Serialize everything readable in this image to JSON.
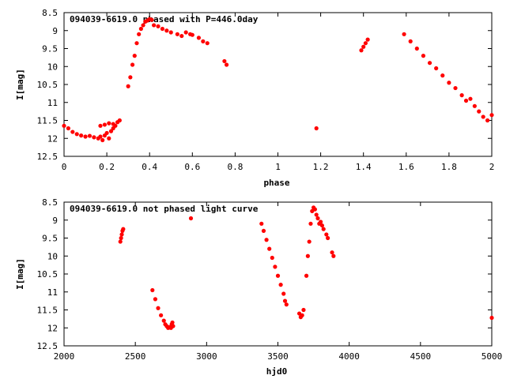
{
  "chart_data": [
    {
      "type": "scatter",
      "title": "094039-6619.0 phased with P=446.0day",
      "xlabel": "phase",
      "ylabel": "I[mag]",
      "xlim": [
        0,
        2
      ],
      "ylim": [
        8.5,
        12.5
      ],
      "y_inverted": true,
      "xticks": [
        "0",
        "0.2",
        "0.4",
        "0.6",
        "0.8",
        "1",
        "1.2",
        "1.4",
        "1.6",
        "1.8",
        "2"
      ],
      "xtick_values": [
        0,
        0.2,
        0.4,
        0.6,
        0.8,
        1.0,
        1.2,
        1.4,
        1.6,
        1.8,
        2.0
      ],
      "yticks": [
        "8.5",
        "9",
        "9.5",
        "10",
        "10.5",
        "11",
        "11.5",
        "12",
        "12.5"
      ],
      "ytick_values": [
        8.5,
        9,
        9.5,
        10,
        10.5,
        11,
        11.5,
        12,
        12.5
      ],
      "grid": false,
      "marker_color": "#ff0000",
      "series": [
        {
          "x": [
            0.0,
            0.02,
            0.04,
            0.06,
            0.08,
            0.1,
            0.12,
            0.14,
            0.16,
            0.17,
            0.18,
            0.19,
            0.2,
            0.21,
            0.22,
            0.23,
            0.24,
            0.25,
            0.26,
            0.17,
            0.19,
            0.21,
            0.23,
            0.3,
            0.31,
            0.32,
            0.33,
            0.34,
            0.35,
            0.36,
            0.37,
            0.38,
            0.39,
            0.4,
            0.41,
            0.42,
            0.44,
            0.46,
            0.48,
            0.5,
            0.53,
            0.55,
            0.57,
            0.59,
            0.6,
            0.63,
            0.65,
            0.67,
            0.75,
            0.76,
            1.18,
            1.39,
            1.4,
            1.41,
            1.42,
            1.59,
            1.62,
            1.65,
            1.68,
            1.71,
            1.74,
            1.77,
            1.8,
            1.83,
            1.86,
            1.88,
            1.9,
            1.92,
            1.94,
            1.96,
            1.98,
            2.0
          ],
          "y": [
            11.65,
            11.72,
            11.82,
            11.88,
            11.92,
            11.95,
            11.93,
            11.97,
            12.0,
            11.95,
            12.05,
            11.92,
            11.85,
            12.0,
            11.8,
            11.72,
            11.65,
            11.55,
            11.5,
            11.65,
            11.62,
            11.58,
            11.6,
            10.55,
            10.3,
            9.95,
            9.7,
            9.35,
            9.1,
            8.95,
            8.85,
            8.75,
            8.72,
            8.68,
            8.7,
            8.85,
            8.88,
            8.95,
            9.0,
            9.05,
            9.1,
            9.15,
            9.05,
            9.1,
            9.12,
            9.2,
            9.3,
            9.35,
            9.85,
            9.95,
            11.72,
            9.55,
            9.45,
            9.35,
            9.25,
            9.1,
            9.3,
            9.5,
            9.7,
            9.9,
            10.05,
            10.25,
            10.45,
            10.6,
            10.8,
            10.95,
            10.9,
            11.1,
            11.25,
            11.4,
            11.5,
            11.35
          ]
        }
      ]
    },
    {
      "type": "scatter",
      "title": "094039-6619.0 not phased light curve",
      "xlabel": "hjd0",
      "ylabel": "I[mag]",
      "xlim": [
        2000,
        5000
      ],
      "ylim": [
        8.5,
        12.5
      ],
      "y_inverted": true,
      "xticks": [
        "2000",
        "2500",
        "3000",
        "3500",
        "4000",
        "4500",
        "5000"
      ],
      "xtick_values": [
        2000,
        2500,
        3000,
        3500,
        4000,
        4500,
        5000
      ],
      "yticks": [
        "8.5",
        "9",
        "9.5",
        "10",
        "10.5",
        "11",
        "11.5",
        "12",
        "12.5"
      ],
      "ytick_values": [
        8.5,
        9,
        9.5,
        10,
        10.5,
        11,
        11.5,
        12,
        12.5
      ],
      "grid": false,
      "marker_color": "#ff0000",
      "series": [
        {
          "x": [
            2395,
            2400,
            2405,
            2410,
            2415,
            2620,
            2640,
            2660,
            2680,
            2700,
            2710,
            2720,
            2730,
            2740,
            2750,
            2755,
            2760,
            2765,
            2890,
            3385,
            3400,
            3420,
            3440,
            3460,
            3480,
            3500,
            3520,
            3540,
            3550,
            3560,
            3650,
            3660,
            3670,
            3680,
            3700,
            3710,
            3720,
            3730,
            3740,
            3750,
            3760,
            3770,
            3780,
            3790,
            3800,
            3810,
            3820,
            3840,
            3850,
            3880,
            3890,
            5000
          ],
          "y": [
            9.6,
            9.5,
            9.4,
            9.3,
            9.25,
            10.95,
            11.2,
            11.45,
            11.65,
            11.8,
            11.9,
            11.95,
            12.0,
            11.98,
            12.0,
            11.9,
            11.85,
            11.95,
            8.95,
            9.1,
            9.3,
            9.55,
            9.8,
            10.05,
            10.3,
            10.55,
            10.8,
            11.05,
            11.25,
            11.35,
            11.6,
            11.7,
            11.65,
            11.5,
            10.55,
            10.0,
            9.6,
            9.1,
            8.75,
            8.65,
            8.7,
            8.85,
            8.95,
            9.1,
            9.05,
            9.15,
            9.25,
            9.4,
            9.5,
            9.9,
            10.0,
            11.72
          ]
        }
      ]
    }
  ]
}
